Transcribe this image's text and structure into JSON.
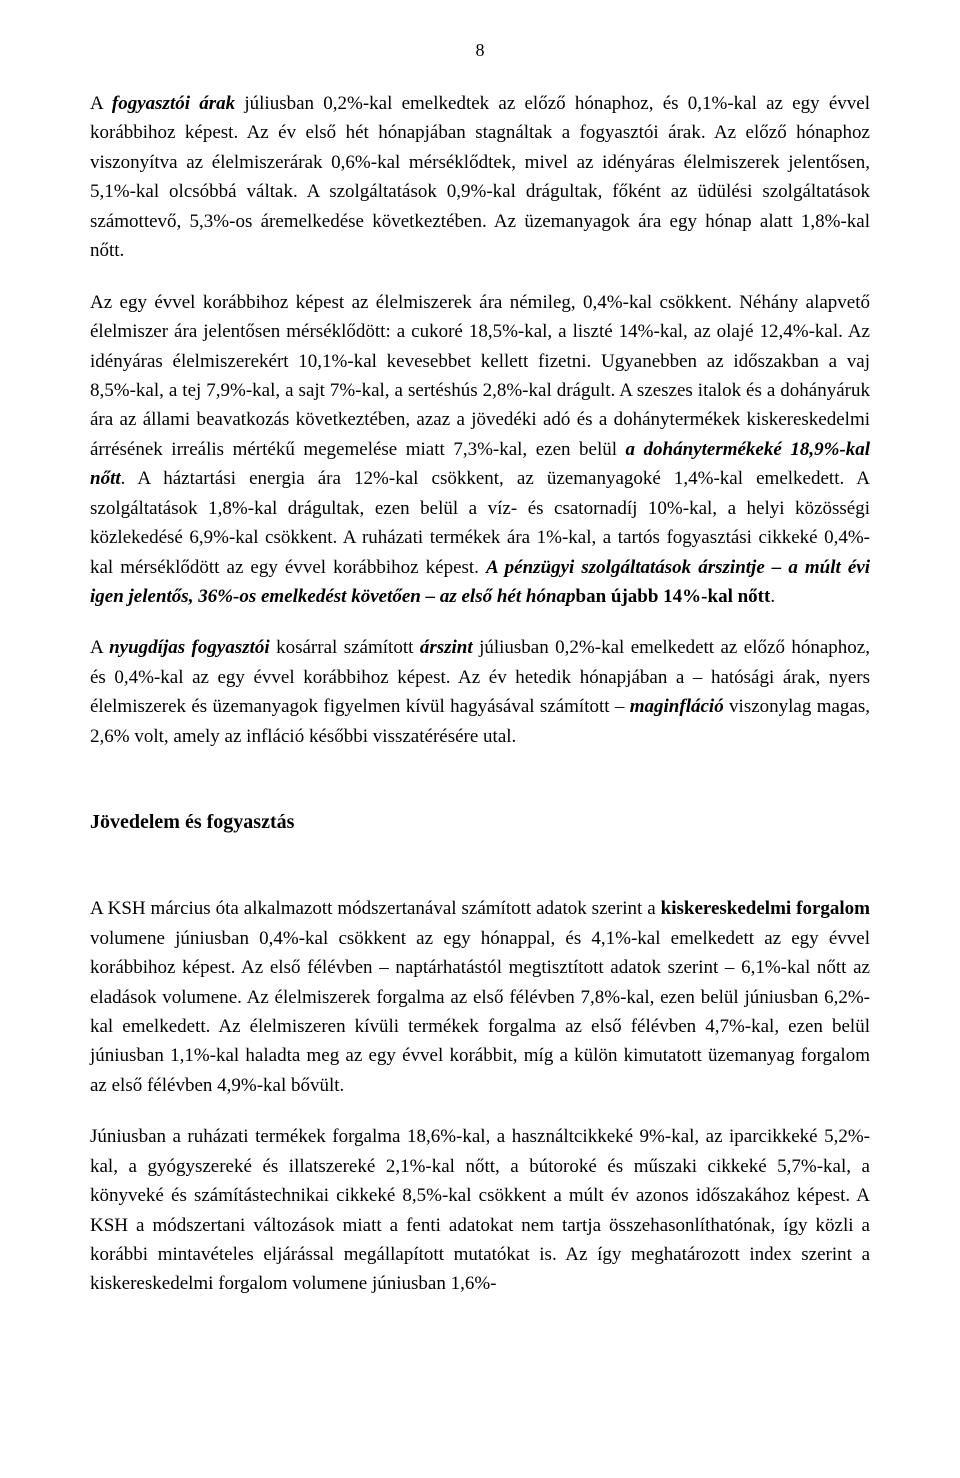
{
  "page_number": "8",
  "paragraphs": {
    "p1": {
      "runs": [
        {
          "text": "A ",
          "style": ""
        },
        {
          "text": "fogyasztói árak",
          "style": "bolditalic"
        },
        {
          "text": " júliusban 0,2%-kal emelkedtek az előző hónaphoz, és 0,1%-kal az egy évvel korábbihoz képest. Az év első hét hónapjában stagnáltak a fogyasztói árak. Az előző hónaphoz viszonyítva az élelmiszerárak 0,6%-kal mérséklődtek, mivel az idényáras élelmiszerek jelentősen, 5,1%-kal olcsóbbá váltak. A szolgáltatások 0,9%-kal drágultak, főként az üdülési szolgáltatások számottevő, 5,3%-os áremelkedése következtében. Az üzemanyagok ára egy hónap alatt 1,8%-kal nőtt.",
          "style": ""
        }
      ]
    },
    "p2": {
      "runs": [
        {
          "text": "Az egy évvel korábbihoz képest az élelmiszerek ára némileg, 0,4%-kal csökkent. Néhány alapvető élelmiszer ára jelentősen mérséklődött: a cukoré 18,5%-kal, a liszté 14%-kal, az olajé 12,4%-kal. Az idényáras élelmiszerekért 10,1%-kal kevesebbet kellett fizetni. Ugyanebben az időszakban a vaj 8,5%-kal, a tej 7,9%-kal, a sajt 7%-kal, a sertéshús 2,8%-kal drágult. A szeszes italok és a dohányáruk ára az állami beavatkozás következtében, azaz a jövedéki adó és a dohánytermékek kiskereskedelmi árrésének irreális mértékű megemelése miatt 7,3%-kal, ezen belül ",
          "style": ""
        },
        {
          "text": "a dohánytermékeké 18,9%-kal nőtt",
          "style": "bolditalic"
        },
        {
          "text": ". A háztartási energia ára 12%-kal csökkent, az üzemanyagoké 1,4%-kal emelkedett. A szolgáltatások 1,8%-kal drágultak, ezen belül a víz- és csatornadíj 10%-kal, a helyi közösségi közlekedésé 6,9%-kal csökkent. A ruházati termékek ára 1%-kal, a tartós fogyasztási cikkeké 0,4%-kal mérséklődött az egy évvel korábbihoz képest. ",
          "style": ""
        },
        {
          "text": "A pénzügyi szolgáltatások árszintje – a múlt évi igen jelentős, 36%-os emelkedést követően – az első hét hónap",
          "style": "bolditalic"
        },
        {
          "text": "ban újabb 14%-kal nőtt",
          "style": "bold"
        },
        {
          "text": ".",
          "style": ""
        }
      ]
    },
    "p3": {
      "runs": [
        {
          "text": "A ",
          "style": ""
        },
        {
          "text": "nyugdíjas fogyasztói",
          "style": "bolditalic"
        },
        {
          "text": " kosárral számított ",
          "style": ""
        },
        {
          "text": "árszint",
          "style": "bolditalic"
        },
        {
          "text": " júliusban 0,2%-kal emelkedett az előző hónaphoz, és 0,4%-kal az egy évvel korábbihoz képest. Az év hetedik hónapjában a – hatósági árak, nyers élelmiszerek és üzemanyagok figyelmen kívül hagyásával számított – ",
          "style": ""
        },
        {
          "text": "maginfláció",
          "style": "bolditalic"
        },
        {
          "text": " viszonylag magas, 2,6% volt, amely az infláció későbbi visszatérésére utal.",
          "style": ""
        }
      ]
    },
    "p4": {
      "runs": [
        {
          "text": "A KSH március óta alkalmazott módszertanával számított adatok szerint a ",
          "style": ""
        },
        {
          "text": "kiskereskedelmi forgalom",
          "style": "bold"
        },
        {
          "text": " volumene júniusban 0,4%-kal csökkent az egy hónappal, és 4,1%-kal emelkedett az egy évvel korábbihoz képest. Az első félévben – naptárhatástól megtisztított adatok szerint – 6,1%-kal nőtt az eladások volumene. Az élelmiszerek forgalma az első félévben 7,8%-kal, ezen belül júniusban 6,2%-kal emelkedett. Az élelmiszeren kívüli termékek forgalma az első félévben 4,7%-kal, ezen belül júniusban 1,1%-kal haladta meg az egy évvel korábbit, míg a külön kimutatott üzemanyag forgalom az első félévben 4,9%-kal bővült.",
          "style": ""
        }
      ]
    },
    "p5": {
      "runs": [
        {
          "text": "Júniusban a ruházati termékek forgalma 18,6%-kal, a használtcikkeké 9%-kal, az iparcikkeké 5,2%-kal, a gyógyszereké és illatszereké 2,1%-kal nőtt, a bútoroké és műszaki cikkeké 5,7%-kal, a könyveké és számítástechnikai cikkeké 8,5%-kal csökkent a múlt év azonos időszakához képest. A KSH a módszertani változások miatt a fenti adatokat nem tartja összehasonlíthatónak, így közli a korábbi mintavételes eljárással megállapított mutatókat is. Az így meghatározott index szerint a kiskereskedelmi forgalom volumene júniusban 1,6%-",
          "style": ""
        }
      ]
    }
  },
  "heading": "Jövedelem és fogyasztás"
}
